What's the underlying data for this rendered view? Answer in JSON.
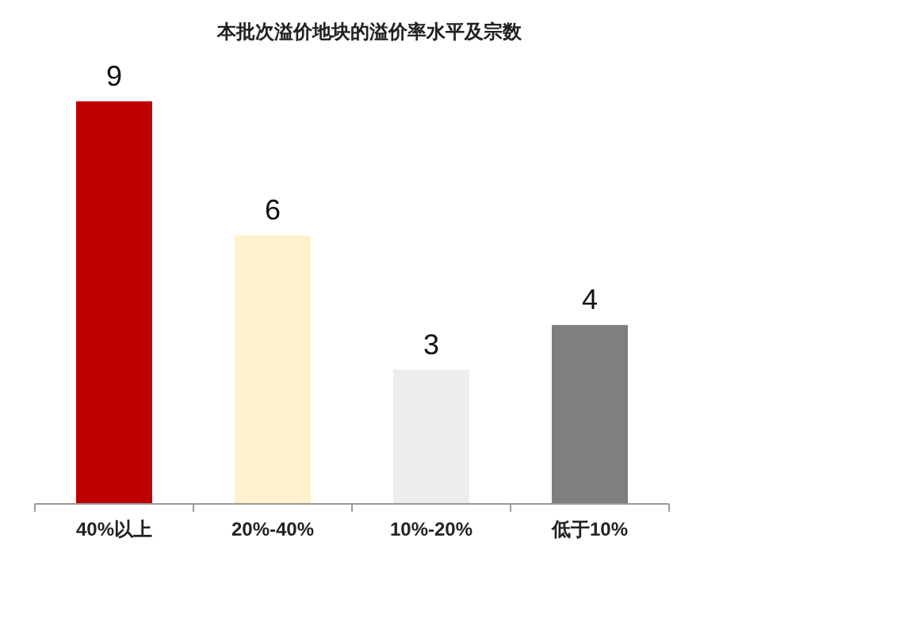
{
  "chart_data": {
    "type": "bar",
    "title": "本批次溢价地块的溢价率水平及宗数",
    "categories": [
      "40%以上",
      "20%-40%",
      "10%-20%",
      "低于10%"
    ],
    "values": [
      9,
      6,
      3,
      4
    ],
    "colors": [
      "#c00000",
      "#fff2cc",
      "#ededed",
      "#7f7f7f"
    ],
    "data_labels": true
  }
}
